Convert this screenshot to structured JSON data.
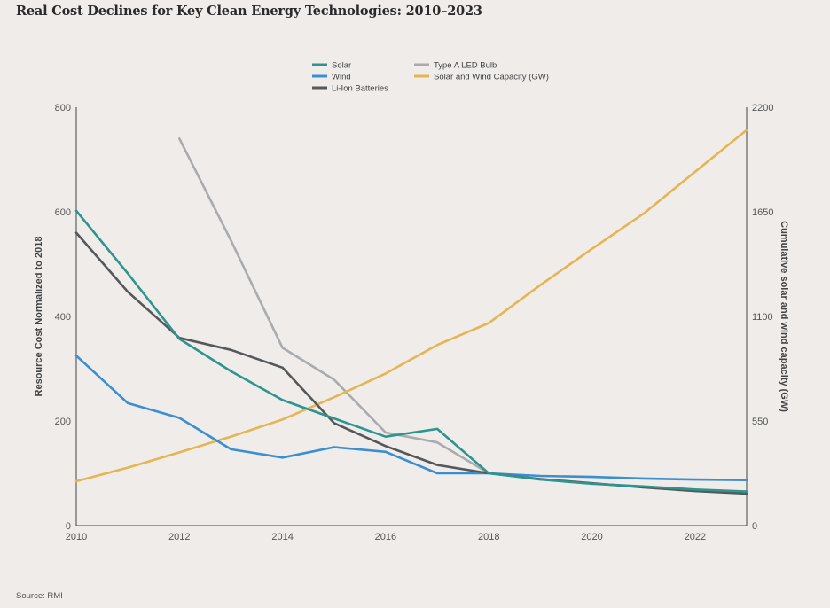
{
  "title": "Real Cost Declines for Key Clean Energy Technologies: 2010–2023",
  "source": "Source: RMI",
  "chart_data": {
    "type": "line",
    "ylabel": "Resource Cost Normalized to 2018",
    "y2label": "Cumulative solar and wind capacity (GW)",
    "xlim": [
      2010,
      2023
    ],
    "ylim": [
      0,
      800
    ],
    "y2lim": [
      0,
      2200
    ],
    "xticks": [
      2010,
      2012,
      2014,
      2016,
      2018,
      2020,
      2022
    ],
    "yticks": [
      0,
      200,
      400,
      600,
      800
    ],
    "y2ticks": [
      0,
      550,
      1100,
      1650,
      2200
    ],
    "grid": false,
    "legend_position": "top-center",
    "series": [
      {
        "name": "Solar",
        "color": "#2e948f",
        "axis": "left",
        "x": [
          2010,
          2011,
          2012,
          2013,
          2014,
          2015,
          2016,
          2017,
          2018,
          2019,
          2020,
          2021,
          2022,
          2023
        ],
        "values": [
          602,
          482,
          357,
          295,
          240,
          205,
          170,
          185,
          100,
          88,
          80,
          75,
          69,
          65
        ]
      },
      {
        "name": "Wind",
        "color": "#3b8fd0",
        "axis": "left",
        "x": [
          2010,
          2011,
          2012,
          2013,
          2014,
          2015,
          2016,
          2017,
          2018,
          2019,
          2020,
          2021,
          2022,
          2023
        ],
        "values": [
          325,
          234,
          206,
          146,
          130,
          150,
          141,
          100,
          100,
          95,
          93,
          90,
          88,
          87
        ]
      },
      {
        "name": "Li-Ion Batteries",
        "color": "#555759",
        "axis": "left",
        "x": [
          2010,
          2011,
          2012,
          2013,
          2014,
          2015,
          2016,
          2017,
          2018,
          2019,
          2020,
          2021,
          2022,
          2023
        ],
        "values": [
          560,
          447,
          359,
          336,
          302,
          196,
          152,
          116,
          100,
          89,
          81,
          73,
          66,
          61
        ]
      },
      {
        "name": "Type A LED Bulb",
        "color": "#a9abad",
        "axis": "left",
        "x": [
          2012,
          2013,
          2014,
          2015,
          2016,
          2017,
          2018
        ],
        "values": [
          740,
          545,
          340,
          279,
          178,
          159,
          100
        ]
      },
      {
        "name": "Solar and Wind Capacity (GW)",
        "color": "#e6b551",
        "axis": "right",
        "x": [
          2010,
          2011,
          2012,
          2013,
          2014,
          2015,
          2016,
          2017,
          2018,
          2019,
          2020,
          2021,
          2022,
          2023
        ],
        "values": [
          233,
          305,
          385,
          468,
          558,
          675,
          800,
          950,
          1065,
          1265,
          1455,
          1640,
          1860,
          2080
        ]
      }
    ],
    "legend": [
      {
        "label": "Solar",
        "color": "#2e948f",
        "col": 0,
        "row": 0
      },
      {
        "label": "Wind",
        "color": "#3b8fd0",
        "col": 0,
        "row": 1
      },
      {
        "label": "Li-Ion Batteries",
        "color": "#555759",
        "col": 0,
        "row": 2
      },
      {
        "label": "Type A LED Bulb",
        "color": "#a9abad",
        "col": 1,
        "row": 0
      },
      {
        "label": "Solar and Wind Capacity (GW)",
        "color": "#e6b551",
        "col": 1,
        "row": 1
      }
    ]
  }
}
